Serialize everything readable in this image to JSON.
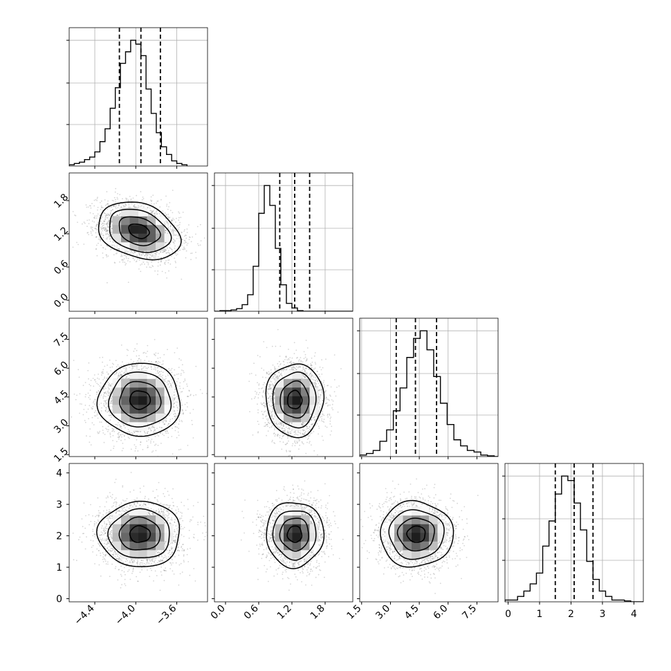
{
  "chart_data": {
    "type": "corner",
    "grid": true,
    "n_params": 4,
    "params": [
      {
        "index": 0,
        "range": [
          -4.65,
          -3.3
        ],
        "ticks": [
          -4.4,
          -4.0,
          -3.6
        ],
        "tick_labels": [
          "−4.4",
          "−4.0",
          "−3.6"
        ],
        "quantiles": [
          -4.16,
          -3.95,
          -3.76
        ],
        "hist": {
          "edges_start": -4.65,
          "bin_width": 0.05,
          "counts": [
            2,
            4,
            6,
            10,
            14,
            22,
            38,
            58,
            90,
            122,
            160,
            178,
            196,
            190,
            172,
            120,
            82,
            52,
            30,
            18,
            8,
            4,
            2
          ]
        }
      },
      {
        "index": 1,
        "range": [
          -0.2,
          2.3
        ],
        "ticks": [
          0.0,
          0.6,
          1.2,
          1.8
        ],
        "tick_labels": [
          "0.0",
          "0.6",
          "1.2",
          "1.8"
        ],
        "quantiles": [
          0.98,
          1.25,
          1.52
        ],
        "hist": {
          "edges_start": -0.2,
          "bin_width": 0.1,
          "counts": [
            0,
            1,
            1,
            2,
            4,
            10,
            25,
            68,
            148,
            190,
            160,
            95,
            40,
            12,
            5,
            1,
            0,
            0,
            0,
            0,
            0,
            0,
            0,
            0,
            0
          ]
        }
      },
      {
        "index": 2,
        "range": [
          1.4,
          8.6
        ],
        "ticks": [
          1.5,
          3.0,
          4.5,
          6.0,
          7.5
        ],
        "tick_labels": [
          "1.5",
          "3.0",
          "4.5",
          "6.0",
          "7.5"
        ],
        "quantiles": [
          3.3,
          4.3,
          5.4
        ],
        "hist": {
          "edges_start": 1.4,
          "bin_width": 0.35,
          "counts": [
            2,
            4,
            8,
            20,
            35,
            60,
            90,
            130,
            155,
            165,
            140,
            105,
            70,
            42,
            22,
            14,
            8,
            6,
            2,
            1,
            0
          ]
        }
      },
      {
        "index": 3,
        "range": [
          -0.1,
          4.3
        ],
        "ticks": [
          0,
          1,
          2,
          3,
          4
        ],
        "tick_labels": [
          "0",
          "1",
          "2",
          "3",
          "4"
        ],
        "quantiles": [
          1.5,
          2.1,
          2.7
        ],
        "hist": {
          "edges_start": -0.1,
          "bin_width": 0.2,
          "counts": [
            2,
            2,
            6,
            12,
            20,
            32,
            62,
            90,
            120,
            140,
            135,
            110,
            80,
            45,
            25,
            12,
            6,
            2,
            2,
            1,
            0,
            0
          ]
        }
      }
    ],
    "pairs": [
      {
        "x": 0,
        "y": 1,
        "center": [
          -3.97,
          1.25
        ],
        "sd": [
          0.2,
          0.26
        ],
        "rho": -0.28
      },
      {
        "x": 0,
        "y": 2,
        "center": [
          -3.96,
          4.35
        ],
        "sd": [
          0.2,
          0.95
        ],
        "rho": 0.0
      },
      {
        "x": 0,
        "y": 3,
        "center": [
          -3.96,
          2.05
        ],
        "sd": [
          0.2,
          0.52
        ],
        "rho": 0.0
      },
      {
        "x": 1,
        "y": 2,
        "center": [
          1.25,
          4.35
        ],
        "sd": [
          0.26,
          0.95
        ],
        "rho": 0.0
      },
      {
        "x": 1,
        "y": 3,
        "center": [
          1.25,
          2.05
        ],
        "sd": [
          0.26,
          0.52
        ],
        "rho": 0.0
      },
      {
        "x": 2,
        "y": 3,
        "center": [
          4.35,
          2.05
        ],
        "sd": [
          0.95,
          0.52
        ],
        "rho": 0.0
      }
    ],
    "contour_levels_sigma": [
      0.5,
      1.0,
      1.5,
      2.0
    ]
  }
}
